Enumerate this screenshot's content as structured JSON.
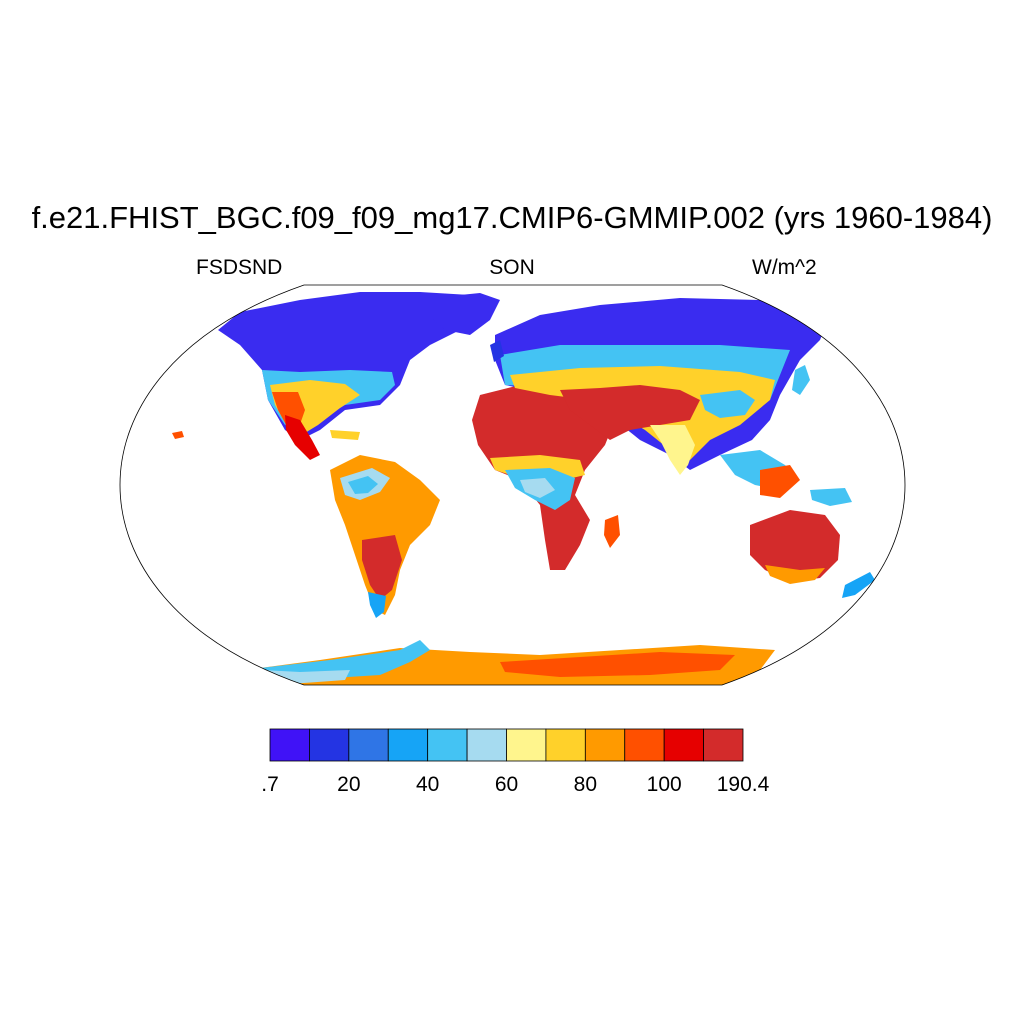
{
  "title": "f.e21.FHIST_BGC.f09_f09_mg17.CMIP6-GMMIP.002 (yrs 1960-1984)",
  "left_string": "FSDSND",
  "center_string": "SON",
  "right_string": "W/m^2",
  "map": {
    "projection": "Robinson",
    "variable": "FSDSND",
    "season": "SON",
    "units": "W/m^2",
    "ocean_fill": "#ffffff",
    "outline_color": "#000000"
  },
  "colorbar": {
    "min_label": ".7",
    "max_label": "190.4",
    "tick_labels": [
      ".7",
      "20",
      "40",
      "60",
      "80",
      "100",
      "190.4"
    ],
    "levels": [
      10,
      20,
      30,
      40,
      50,
      60,
      70,
      80,
      90,
      100,
      110
    ],
    "colors": [
      "#4012f7",
      "#2434e3",
      "#2f75e6",
      "#16a4f6",
      "#44c3f3",
      "#a6dbf0",
      "#fff58d",
      "#ffd12a",
      "#ff9a00",
      "#ff5000",
      "#e60000",
      "#d32b2b"
    ]
  }
}
